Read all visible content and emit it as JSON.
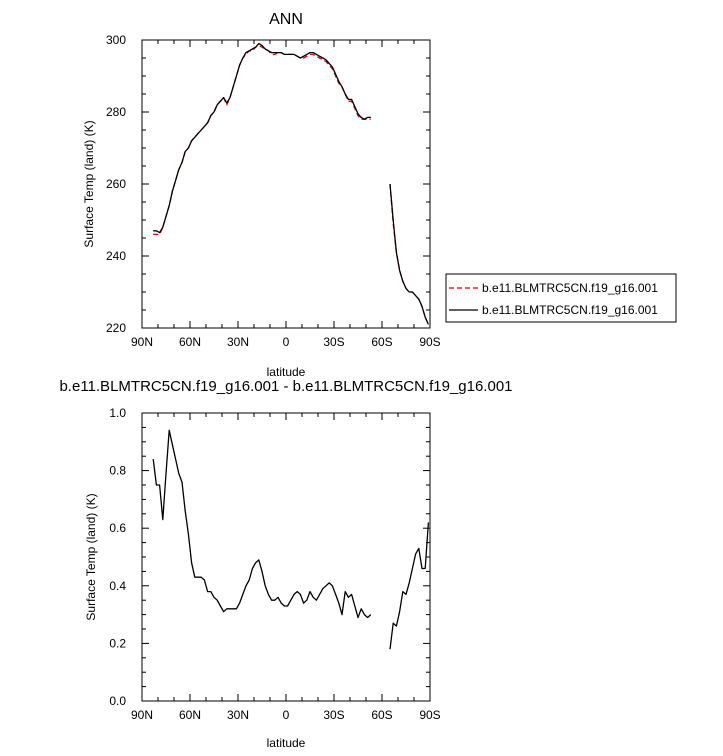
{
  "chart_data": [
    {
      "type": "line",
      "title": "ANN",
      "xlabel": "latitude",
      "ylabel": "Surface Temp (land) (K)",
      "xlim": [
        90,
        -90
      ],
      "ylim": [
        220,
        300
      ],
      "x_tick_labels": [
        "90N",
        "60N",
        "30N",
        "0",
        "30S",
        "60S",
        "90S"
      ],
      "y_tick_labels": [
        "220",
        "240",
        "260",
        "280",
        "300"
      ],
      "legend_position": "right",
      "series": [
        {
          "name": "b.e11.BLMTRC5CN.f19_g16.001",
          "color": "#d40000",
          "style": "dashed",
          "segments": [
            [
              [
                83,
                246
              ],
              [
                81,
                246
              ],
              [
                79,
                246
              ],
              [
                77,
                248
              ],
              [
                75,
                251
              ],
              [
                73,
                254
              ],
              [
                71,
                258
              ],
              [
                69,
                261
              ],
              [
                67,
                264
              ],
              [
                65,
                266
              ],
              [
                63,
                269
              ],
              [
                61,
                270
              ],
              [
                59,
                272
              ],
              [
                57,
                273
              ],
              [
                55,
                274
              ],
              [
                53,
                275
              ],
              [
                51,
                276
              ],
              [
                49,
                277
              ],
              [
                47,
                279
              ],
              [
                45,
                280
              ],
              [
                43,
                282
              ],
              [
                41,
                283
              ],
              [
                39,
                284
              ],
              [
                37,
                282
              ],
              [
                35,
                284
              ],
              [
                33,
                287
              ],
              [
                31,
                290
              ],
              [
                29,
                293
              ],
              [
                27,
                295
              ],
              [
                25,
                296
              ],
              [
                23,
                297
              ],
              [
                21,
                297
              ],
              [
                19,
                298
              ],
              [
                17,
                298.5
              ],
              [
                15,
                298
              ],
              [
                13,
                297.5
              ],
              [
                11,
                297
              ],
              [
                9,
                296
              ],
              [
                7,
                296
              ],
              [
                5,
                296.5
              ],
              [
                3,
                296.5
              ],
              [
                1,
                296
              ],
              [
                -1,
                296
              ],
              [
                -3,
                296
              ],
              [
                -5,
                296
              ],
              [
                -7,
                295.5
              ],
              [
                -9,
                295
              ],
              [
                -11,
                295
              ],
              [
                -13,
                295.5
              ],
              [
                -15,
                296
              ],
              [
                -17,
                296
              ],
              [
                -19,
                295.5
              ],
              [
                -21,
                295
              ],
              [
                -23,
                294.5
              ],
              [
                -25,
                294
              ],
              [
                -27,
                293
              ],
              [
                -29,
                292
              ],
              [
                -31,
                290
              ],
              [
                -33,
                288
              ],
              [
                -35,
                287
              ],
              [
                -37,
                285
              ],
              [
                -39,
                283
              ],
              [
                -41,
                283
              ],
              [
                -43,
                281
              ],
              [
                -45,
                279
              ],
              [
                -47,
                278
              ],
              [
                -49,
                278
              ],
              [
                -51,
                278
              ],
              [
                -53,
                278
              ]
            ],
            [
              [
                -65,
                260
              ],
              [
                -67,
                249
              ],
              [
                -69,
                241
              ],
              [
                -71,
                236
              ],
              [
                -73,
                233
              ],
              [
                -75,
                231
              ],
              [
                -77,
                230
              ],
              [
                -79,
                230
              ],
              [
                -81,
                229
              ],
              [
                -83,
                228
              ],
              [
                -85,
                226
              ],
              [
                -87,
                223
              ],
              [
                -89,
                221
              ]
            ]
          ]
        },
        {
          "name": "b.e11.BLMTRC5CN.f19_g16.001",
          "color": "#000000",
          "style": "solid",
          "segments": [
            [
              [
                83,
                247
              ],
              [
                81,
                247
              ],
              [
                79,
                246.5
              ],
              [
                77,
                248
              ],
              [
                75,
                251
              ],
              [
                73,
                254
              ],
              [
                71,
                258
              ],
              [
                69,
                261
              ],
              [
                67,
                264
              ],
              [
                65,
                266
              ],
              [
                63,
                269
              ],
              [
                61,
                270
              ],
              [
                59,
                272
              ],
              [
                57,
                273
              ],
              [
                55,
                274
              ],
              [
                53,
                275
              ],
              [
                51,
                276
              ],
              [
                49,
                277
              ],
              [
                47,
                279
              ],
              [
                45,
                280
              ],
              [
                43,
                282
              ],
              [
                41,
                283
              ],
              [
                39,
                284
              ],
              [
                37,
                282.5
              ],
              [
                35,
                284
              ],
              [
                33,
                287
              ],
              [
                31,
                290
              ],
              [
                29,
                293
              ],
              [
                27,
                295
              ],
              [
                25,
                296.5
              ],
              [
                23,
                297
              ],
              [
                21,
                297.5
              ],
              [
                19,
                298
              ],
              [
                17,
                299
              ],
              [
                15,
                298.5
              ],
              [
                13,
                297.5
              ],
              [
                11,
                297
              ],
              [
                9,
                296.5
              ],
              [
                7,
                296.5
              ],
              [
                5,
                296.5
              ],
              [
                3,
                296.5
              ],
              [
                1,
                296
              ],
              [
                -1,
                296
              ],
              [
                -3,
                296
              ],
              [
                -5,
                296
              ],
              [
                -7,
                295.5
              ],
              [
                -9,
                295
              ],
              [
                -11,
                295.5
              ],
              [
                -13,
                296
              ],
              [
                -15,
                296.5
              ],
              [
                -17,
                296.5
              ],
              [
                -19,
                296
              ],
              [
                -21,
                295.5
              ],
              [
                -23,
                295
              ],
              [
                -25,
                294.5
              ],
              [
                -27,
                293.5
              ],
              [
                -29,
                292.5
              ],
              [
                -31,
                290.5
              ],
              [
                -33,
                288.5
              ],
              [
                -35,
                287
              ],
              [
                -37,
                285
              ],
              [
                -39,
                283.5
              ],
              [
                -41,
                283.5
              ],
              [
                -43,
                281.5
              ],
              [
                -45,
                279.5
              ],
              [
                -47,
                278.5
              ],
              [
                -49,
                278
              ],
              [
                -51,
                278.5
              ],
              [
                -53,
                278.5
              ]
            ],
            [
              [
                -65,
                260
              ],
              [
                -67,
                250
              ],
              [
                -69,
                241
              ],
              [
                -71,
                236
              ],
              [
                -73,
                233
              ],
              [
                -75,
                231
              ],
              [
                -77,
                230
              ],
              [
                -79,
                230
              ],
              [
                -81,
                229
              ],
              [
                -83,
                228
              ],
              [
                -85,
                226
              ],
              [
                -87,
                223
              ],
              [
                -89,
                221
              ]
            ]
          ]
        }
      ]
    },
    {
      "type": "line",
      "title": "b.e11.BLMTRC5CN.f19_g16.001 - b.e11.BLMTRC5CN.f19_g16.001",
      "xlabel": "latitude",
      "ylabel": "Surface Temp (land) (K)",
      "xlim": [
        90,
        -90
      ],
      "ylim": [
        0.0,
        1.0
      ],
      "x_tick_labels": [
        "90N",
        "60N",
        "30N",
        "0",
        "30S",
        "60S",
        "90S"
      ],
      "y_tick_labels": [
        "0.0",
        "0.2",
        "0.4",
        "0.6",
        "0.8",
        "1.0"
      ],
      "series": [
        {
          "color": "#000000",
          "style": "solid",
          "segments": [
            [
              [
                83,
                0.84
              ],
              [
                81,
                0.75
              ],
              [
                79,
                0.75
              ],
              [
                77,
                0.63
              ],
              [
                75,
                0.79
              ],
              [
                73,
                0.94
              ],
              [
                71,
                0.89
              ],
              [
                69,
                0.84
              ],
              [
                67,
                0.79
              ],
              [
                65,
                0.76
              ],
              [
                63,
                0.66
              ],
              [
                61,
                0.58
              ],
              [
                59,
                0.48
              ],
              [
                57,
                0.43
              ],
              [
                55,
                0.43
              ],
              [
                53,
                0.43
              ],
              [
                51,
                0.42
              ],
              [
                49,
                0.38
              ],
              [
                47,
                0.38
              ],
              [
                45,
                0.36
              ],
              [
                43,
                0.35
              ],
              [
                41,
                0.33
              ],
              [
                39,
                0.31
              ],
              [
                37,
                0.32
              ],
              [
                35,
                0.32
              ],
              [
                33,
                0.32
              ],
              [
                31,
                0.32
              ],
              [
                29,
                0.34
              ],
              [
                27,
                0.37
              ],
              [
                25,
                0.4
              ],
              [
                23,
                0.42
              ],
              [
                21,
                0.46
              ],
              [
                19,
                0.48
              ],
              [
                17,
                0.49
              ],
              [
                15,
                0.45
              ],
              [
                13,
                0.4
              ],
              [
                11,
                0.37
              ],
              [
                9,
                0.35
              ],
              [
                7,
                0.35
              ],
              [
                5,
                0.36
              ],
              [
                3,
                0.34
              ],
              [
                1,
                0.33
              ],
              [
                -1,
                0.33
              ],
              [
                -3,
                0.35
              ],
              [
                -5,
                0.37
              ],
              [
                -7,
                0.38
              ],
              [
                -9,
                0.37
              ],
              [
                -11,
                0.34
              ],
              [
                -13,
                0.35
              ],
              [
                -15,
                0.38
              ],
              [
                -17,
                0.36
              ],
              [
                -19,
                0.35
              ],
              [
                -21,
                0.37
              ],
              [
                -23,
                0.39
              ],
              [
                -25,
                0.4
              ],
              [
                -27,
                0.41
              ],
              [
                -29,
                0.4
              ],
              [
                -31,
                0.37
              ],
              [
                -33,
                0.34
              ],
              [
                -35,
                0.3
              ],
              [
                -37,
                0.38
              ],
              [
                -39,
                0.36
              ],
              [
                -41,
                0.37
              ],
              [
                -43,
                0.33
              ],
              [
                -45,
                0.29
              ],
              [
                -47,
                0.32
              ],
              [
                -49,
                0.3
              ],
              [
                -51,
                0.29
              ],
              [
                -53,
                0.3
              ]
            ],
            [
              [
                -65,
                0.18
              ],
              [
                -67,
                0.27
              ],
              [
                -69,
                0.26
              ],
              [
                -71,
                0.31
              ],
              [
                -73,
                0.38
              ],
              [
                -75,
                0.37
              ],
              [
                -77,
                0.41
              ],
              [
                -79,
                0.46
              ],
              [
                -81,
                0.51
              ],
              [
                -83,
                0.53
              ],
              [
                -85,
                0.46
              ],
              [
                -87,
                0.46
              ],
              [
                -89,
                0.62
              ]
            ]
          ]
        }
      ]
    }
  ]
}
